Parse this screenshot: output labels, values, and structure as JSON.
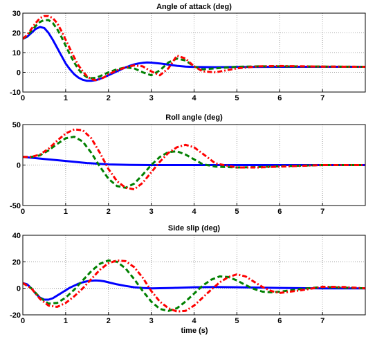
{
  "xlabel": "time (s)",
  "series_colors": [
    "#0000ff",
    "#008000",
    "#ff0000"
  ],
  "chart_data": [
    {
      "type": "line",
      "title": "Angle of attack (deg)",
      "xlim": [
        0,
        8
      ],
      "ylim": [
        -10,
        30
      ],
      "xticks": [
        "0",
        "1",
        "2",
        "3",
        "4",
        "5",
        "6",
        "7"
      ],
      "yticks": [
        "-10",
        "0",
        "10",
        "20",
        "30"
      ],
      "grid": true,
      "series": [
        {
          "style": "solid",
          "x": [
            0,
            0.1,
            0.2,
            0.3,
            0.4,
            0.5,
            0.6,
            0.7,
            0.8,
            0.9,
            1.0,
            1.1,
            1.2,
            1.3,
            1.4,
            1.5,
            1.6,
            1.7,
            1.8,
            1.9,
            2.0,
            2.1,
            2.2,
            2.3,
            2.4,
            2.5,
            2.6,
            2.7,
            2.8,
            2.9,
            3.0,
            3.2,
            3.4,
            3.6,
            3.8,
            4.0,
            4.5,
            5.0,
            6.0,
            7.0,
            8.0
          ],
          "y": [
            17,
            18,
            20,
            22,
            23,
            22.5,
            20,
            16.5,
            12.5,
            8.5,
            4.5,
            1.5,
            -1,
            -2.7,
            -3.8,
            -4.3,
            -4.3,
            -4,
            -3.3,
            -2.5,
            -1.5,
            -0.5,
            0.5,
            1.5,
            2.5,
            3.3,
            4,
            4.5,
            4.8,
            5,
            4.9,
            4.5,
            3.9,
            3.3,
            2.9,
            2.7,
            2.6,
            2.7,
            2.8,
            2.8,
            2.8
          ]
        },
        {
          "style": "dashed",
          "x": [
            0,
            0.1,
            0.2,
            0.3,
            0.4,
            0.5,
            0.6,
            0.7,
            0.8,
            0.9,
            1.0,
            1.1,
            1.2,
            1.3,
            1.4,
            1.5,
            1.6,
            1.7,
            1.8,
            1.9,
            2.0,
            2.2,
            2.4,
            2.6,
            2.8,
            3.0,
            3.2,
            3.4,
            3.6,
            3.8,
            4.0,
            4.2,
            4.5,
            5.0,
            5.5,
            6.0,
            7.0,
            8.0
          ],
          "y": [
            17,
            18.5,
            21,
            23.5,
            25.5,
            26.5,
            26.5,
            25,
            22,
            18,
            13.5,
            9,
            5,
            1.5,
            -1,
            -2.5,
            -3,
            -2.8,
            -2,
            -1,
            0,
            1.5,
            2.5,
            2,
            0,
            -1.5,
            1,
            5,
            7,
            6,
            3,
            1.5,
            2,
            2.8,
            3,
            3,
            2.9,
            2.8
          ]
        },
        {
          "style": "dashdot",
          "x": [
            0,
            0.1,
            0.2,
            0.3,
            0.4,
            0.5,
            0.6,
            0.7,
            0.8,
            0.9,
            1.0,
            1.1,
            1.2,
            1.3,
            1.4,
            1.5,
            1.6,
            1.7,
            1.8,
            1.9,
            2.0,
            2.2,
            2.4,
            2.6,
            2.8,
            3.0,
            3.2,
            3.4,
            3.6,
            3.8,
            4.0,
            4.2,
            4.5,
            5.0,
            5.5,
            6.0,
            7.0,
            8.0
          ],
          "y": [
            17,
            19,
            22,
            25,
            27.5,
            28.5,
            28.5,
            27.5,
            25,
            21,
            16.5,
            12,
            7.5,
            3.5,
            0.5,
            -2,
            -3.5,
            -4,
            -3.5,
            -2.5,
            -1,
            1,
            2.5,
            3.5,
            3,
            0.5,
            -1.5,
            2,
            8.5,
            7,
            3,
            0.5,
            0,
            2,
            3,
            3.2,
            2.9,
            2.8
          ]
        }
      ]
    },
    {
      "type": "line",
      "title": "Roll angle (deg)",
      "xlim": [
        0,
        8
      ],
      "ylim": [
        -50,
        50
      ],
      "xticks": [
        "0",
        "1",
        "2",
        "3",
        "4",
        "5",
        "6",
        "7"
      ],
      "yticks": [
        "-50",
        "0",
        "50"
      ],
      "grid": true,
      "series": [
        {
          "style": "solid",
          "x": [
            0,
            0.5,
            1.0,
            1.5,
            2.0,
            2.5,
            3.0,
            4.0,
            5.0,
            8.0
          ],
          "y": [
            10,
            7.5,
            5,
            2.5,
            0.8,
            0.2,
            0,
            0,
            0,
            0
          ]
        },
        {
          "style": "dashed",
          "x": [
            0,
            0.2,
            0.4,
            0.6,
            0.8,
            1.0,
            1.2,
            1.4,
            1.6,
            1.8,
            2.0,
            2.2,
            2.4,
            2.6,
            2.8,
            3.0,
            3.2,
            3.4,
            3.6,
            3.8,
            4.0,
            4.2,
            4.5,
            5.0,
            5.5,
            6.0,
            7.0,
            8.0
          ],
          "y": [
            10,
            10,
            12,
            18,
            26,
            33,
            35,
            29,
            15,
            -2,
            -17,
            -26,
            -28,
            -23,
            -12,
            0,
            10,
            16,
            17,
            13,
            7,
            1,
            -2,
            -3,
            -2.5,
            -1.5,
            0,
            0
          ]
        },
        {
          "style": "dashdot",
          "x": [
            0,
            0.2,
            0.4,
            0.6,
            0.8,
            1.0,
            1.2,
            1.4,
            1.6,
            1.8,
            2.0,
            2.2,
            2.4,
            2.6,
            2.8,
            3.0,
            3.2,
            3.4,
            3.6,
            3.8,
            4.0,
            4.2,
            4.5,
            5.0,
            5.5,
            6.0,
            7.0,
            8.0
          ],
          "y": [
            10,
            10,
            13,
            20,
            30,
            39,
            44,
            43,
            33,
            15,
            -5,
            -20,
            -28,
            -30,
            -22,
            -9,
            4,
            15,
            22,
            25,
            22,
            14,
            2,
            -3,
            -3,
            -2,
            0,
            0
          ]
        }
      ]
    },
    {
      "type": "line",
      "title": "Side slip (deg)",
      "xlim": [
        0,
        8
      ],
      "ylim": [
        -20,
        40
      ],
      "xticks": [
        "0",
        "1",
        "2",
        "3",
        "4",
        "5",
        "6",
        "7"
      ],
      "yticks": [
        "-20",
        "0",
        "20",
        "40"
      ],
      "grid": true,
      "series": [
        {
          "style": "solid",
          "x": [
            0,
            0.1,
            0.2,
            0.3,
            0.4,
            0.5,
            0.6,
            0.7,
            0.8,
            0.9,
            1.0,
            1.1,
            1.2,
            1.3,
            1.4,
            1.5,
            1.6,
            1.7,
            1.8,
            1.9,
            2.0,
            2.2,
            2.4,
            2.6,
            2.8,
            3.0,
            3.5,
            4.0,
            4.5,
            5.0,
            6.0,
            7.0,
            8.0
          ],
          "y": [
            4,
            3,
            0,
            -4,
            -7,
            -8.5,
            -8.5,
            -7.5,
            -5.5,
            -3.5,
            -1.5,
            0.5,
            2,
            3.5,
            4.5,
            5.3,
            5.8,
            6,
            5.8,
            5.3,
            4.5,
            3,
            1.8,
            0.8,
            0.3,
            0,
            0.3,
            0.8,
            1,
            0.8,
            0.3,
            0,
            0
          ]
        },
        {
          "style": "dashed",
          "x": [
            0,
            0.2,
            0.4,
            0.6,
            0.8,
            1.0,
            1.2,
            1.4,
            1.6,
            1.8,
            2.0,
            2.2,
            2.4,
            2.6,
            2.8,
            3.0,
            3.2,
            3.4,
            3.6,
            3.8,
            4.0,
            4.2,
            4.4,
            4.6,
            4.8,
            5.0,
            5.2,
            5.4,
            5.6,
            5.8,
            6.0,
            6.5,
            7.0,
            7.5,
            8.0
          ],
          "y": [
            4,
            0,
            -7,
            -11.5,
            -11,
            -7,
            -1,
            6,
            13,
            18.5,
            21,
            20,
            15,
            7,
            -2,
            -10,
            -15.5,
            -17,
            -15,
            -10,
            -4,
            2,
            6.5,
            9,
            8.5,
            6,
            2.5,
            -0.5,
            -2.5,
            -3,
            -2.5,
            -0.5,
            1,
            0.5,
            0
          ]
        },
        {
          "style": "dashdot",
          "x": [
            0,
            0.2,
            0.4,
            0.6,
            0.8,
            1.0,
            1.2,
            1.4,
            1.6,
            1.8,
            2.0,
            2.2,
            2.4,
            2.6,
            2.8,
            3.0,
            3.2,
            3.4,
            3.6,
            3.8,
            4.0,
            4.2,
            4.4,
            4.6,
            4.8,
            5.0,
            5.2,
            5.4,
            5.6,
            5.8,
            6.0,
            6.5,
            7.0,
            7.5,
            8.0
          ],
          "y": [
            4,
            0,
            -8,
            -13,
            -14,
            -11,
            -6,
            0,
            7,
            14,
            19,
            21,
            20.5,
            16,
            8,
            -2,
            -10,
            -15,
            -17.5,
            -17,
            -13,
            -7,
            -1,
            4.5,
            8.5,
            10.5,
            9,
            5,
            1,
            -2,
            -3.5,
            -1.5,
            1.2,
            1,
            0
          ]
        }
      ]
    }
  ]
}
